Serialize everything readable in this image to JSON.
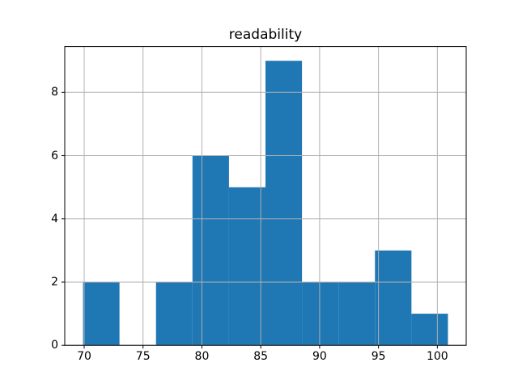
{
  "title": "readability",
  "colors": {
    "bar": "#1f77b4",
    "grid": "#b0b0b0",
    "spine": "#000000",
    "tick": "#000000",
    "text": "#000000",
    "background": "#ffffff"
  },
  "chart_data": {
    "type": "bar",
    "subtype": "histogram",
    "title": "readability",
    "xlabel": "",
    "ylabel": "",
    "bin_edges": [
      69.9,
      73.0,
      76.1,
      79.2,
      82.3,
      85.4,
      88.5,
      91.6,
      94.7,
      97.8,
      100.9
    ],
    "counts": [
      2,
      0,
      2,
      6,
      5,
      9,
      2,
      2,
      3,
      1
    ],
    "xticks": [
      70,
      75,
      80,
      85,
      90,
      95,
      100
    ],
    "yticks": [
      0,
      2,
      4,
      6,
      8
    ],
    "xlim": [
      68.35,
      102.45
    ],
    "ylim": [
      0,
      9.45
    ],
    "grid": true,
    "grid_above_bars": true,
    "legend_position": "none"
  }
}
